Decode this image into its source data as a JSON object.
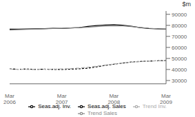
{
  "chart_data": {
    "type": "line",
    "title": "$m",
    "categories": [
      "Mar\n2006",
      null,
      null,
      null,
      null,
      null,
      "Mar\n2007",
      null,
      null,
      null,
      null,
      null,
      "Mar\n2008",
      null,
      null,
      null,
      null,
      null,
      "Mar\n2009"
    ],
    "series": [
      {
        "name": "Seas.adj. Sales",
        "color": "#000000",
        "line_style": "solid",
        "values": [
          76500,
          76600,
          76700,
          76800,
          77000,
          77300,
          77200,
          77600,
          78000,
          79000,
          79800,
          80300,
          80600,
          80100,
          79200,
          78000,
          77200,
          76800,
          76500
        ]
      },
      {
        "name": "Trend Sales",
        "color": "#888888",
        "line_style": "solid",
        "values": [
          75800,
          76100,
          76300,
          76600,
          76900,
          77100,
          77300,
          77600,
          77900,
          78300,
          78900,
          79400,
          79700,
          79500,
          78900,
          78100,
          77400,
          76900,
          76700
        ]
      },
      {
        "name": "Seas.adj. Inv.",
        "color": "#000000",
        "line_style": "dashed",
        "values": [
          40500,
          40200,
          40400,
          40100,
          40300,
          40100,
          40000,
          40300,
          40600,
          41200,
          42300,
          43700,
          44800,
          45800,
          46700,
          47300,
          47600,
          47900,
          48100
        ]
      },
      {
        "name": "Trend Inv.",
        "color": "#aaaaaa",
        "line_style": "dashed",
        "values": [
          40300,
          40200,
          40100,
          40100,
          40200,
          40300,
          40500,
          40800,
          41300,
          42000,
          43000,
          44000,
          45000,
          45900,
          46600,
          47100,
          47500,
          47800,
          48000
        ]
      }
    ],
    "ylim": [
      27000,
      93000
    ],
    "yticks": [
      30000,
      40000,
      50000,
      60000,
      70000,
      80000,
      90000
    ],
    "grid": false,
    "legend": "bottom"
  }
}
